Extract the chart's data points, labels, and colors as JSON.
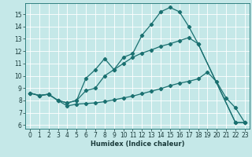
{
  "xlabel": "Humidex (Indice chaleur)",
  "bg_color": "#c5e8e8",
  "grid_color": "#ffffff",
  "line_color": "#1a7070",
  "xlim": [
    -0.5,
    23.5
  ],
  "ylim": [
    5.7,
    15.9
  ],
  "yticks": [
    6,
    7,
    8,
    9,
    10,
    11,
    12,
    13,
    14,
    15
  ],
  "xticks": [
    0,
    1,
    2,
    3,
    4,
    5,
    6,
    7,
    8,
    9,
    10,
    11,
    12,
    13,
    14,
    15,
    16,
    17,
    18,
    19,
    20,
    21,
    22,
    23
  ],
  "line1_x": [
    0,
    1,
    2,
    3,
    4,
    5,
    6,
    7,
    8,
    9,
    10,
    11,
    12,
    13,
    14,
    15,
    16,
    17,
    18,
    22,
    23
  ],
  "line1_y": [
    8.6,
    8.4,
    8.5,
    8.0,
    7.8,
    8.0,
    8.8,
    9.0,
    10.0,
    10.5,
    11.5,
    11.8,
    13.3,
    14.2,
    15.2,
    15.55,
    15.2,
    14.0,
    12.6,
    6.2,
    6.2
  ],
  "line2_x": [
    0,
    1,
    2,
    3,
    4,
    5,
    6,
    7,
    8,
    9,
    10,
    11,
    12,
    13,
    14,
    15,
    16,
    17,
    18,
    19,
    20,
    21,
    22,
    23
  ],
  "line2_y": [
    8.6,
    8.4,
    8.5,
    8.0,
    7.55,
    7.7,
    7.75,
    7.8,
    7.9,
    8.05,
    8.2,
    8.35,
    8.55,
    8.75,
    8.95,
    9.2,
    9.4,
    9.55,
    9.75,
    10.3,
    9.5,
    8.2,
    7.4,
    6.2
  ],
  "line3_x": [
    0,
    1,
    2,
    3,
    4,
    5,
    6,
    7,
    8,
    9,
    10,
    11,
    12,
    13,
    14,
    15,
    16,
    17,
    18,
    22,
    23
  ],
  "line3_y": [
    8.6,
    8.4,
    8.5,
    8.0,
    7.8,
    8.0,
    9.8,
    10.5,
    11.4,
    10.5,
    11.0,
    11.5,
    11.85,
    12.1,
    12.4,
    12.6,
    12.85,
    13.1,
    12.6,
    6.2,
    6.2
  ]
}
